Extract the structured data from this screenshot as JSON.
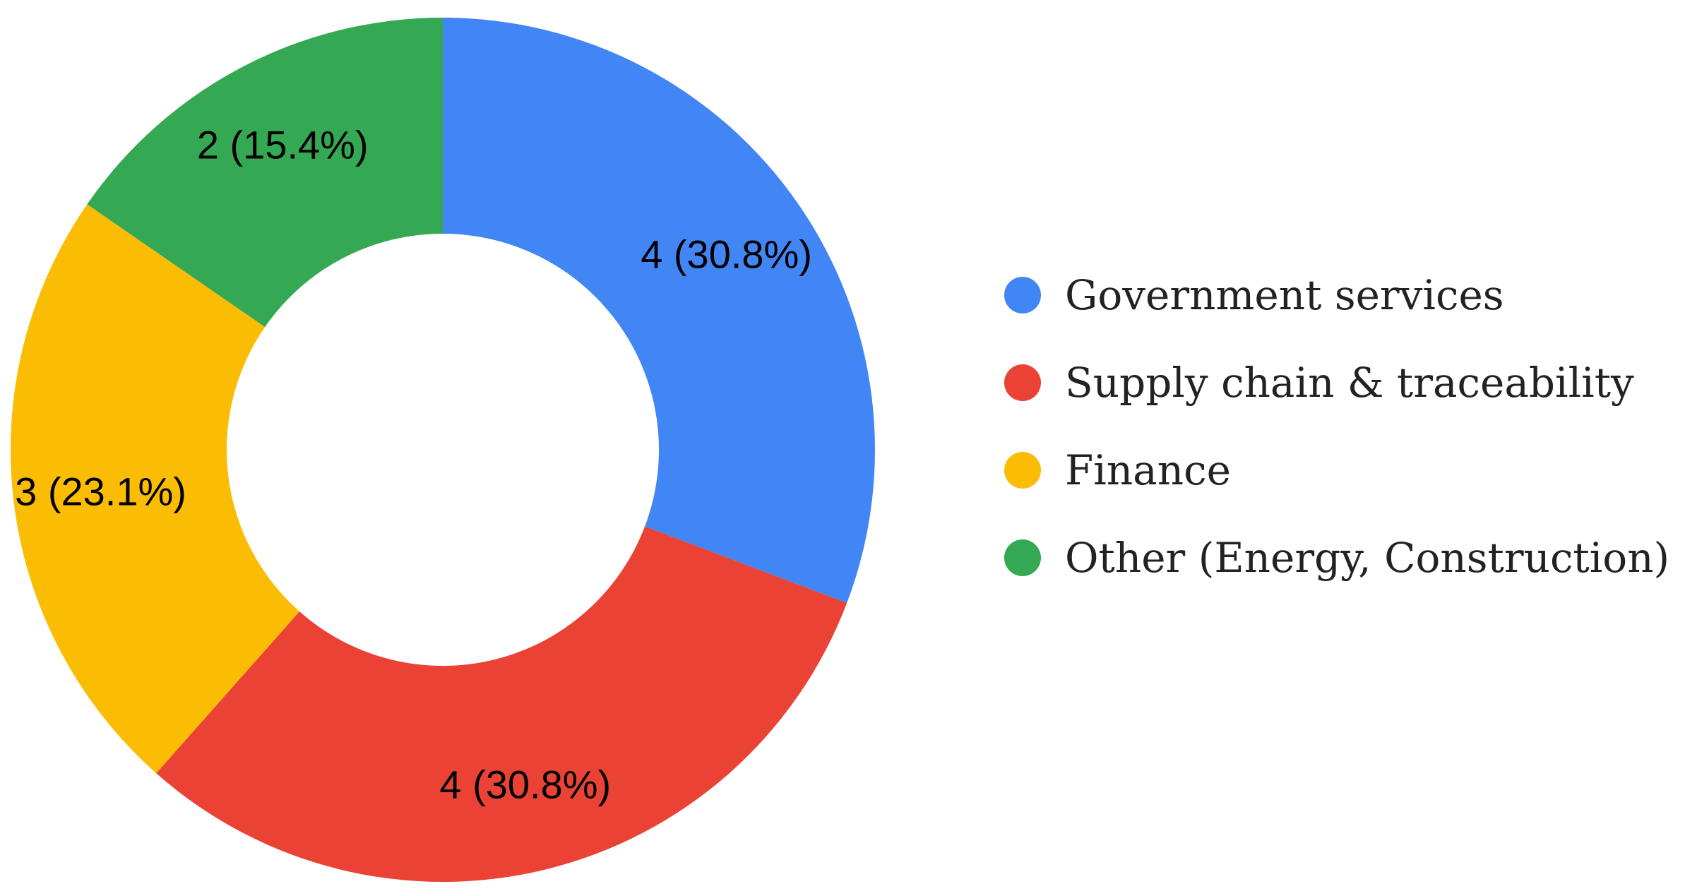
{
  "chart_data": {
    "type": "pie",
    "variant": "donut",
    "title": "",
    "categories": [
      "Government services",
      "Supply chain & traceability",
      "Finance",
      "Other (Energy, Construction)"
    ],
    "values": [
      4,
      4,
      3,
      2
    ],
    "data_labels": [
      "4 (30.8%)",
      "4 (30.8%)",
      "3 (23.1%)",
      "2 (15.4%)"
    ],
    "colors": [
      "#4285f4",
      "#ea4335",
      "#fbbc04",
      "#34a853"
    ],
    "start_angle": "12 o'clock",
    "direction": "clockwise",
    "legend_position": "right"
  }
}
